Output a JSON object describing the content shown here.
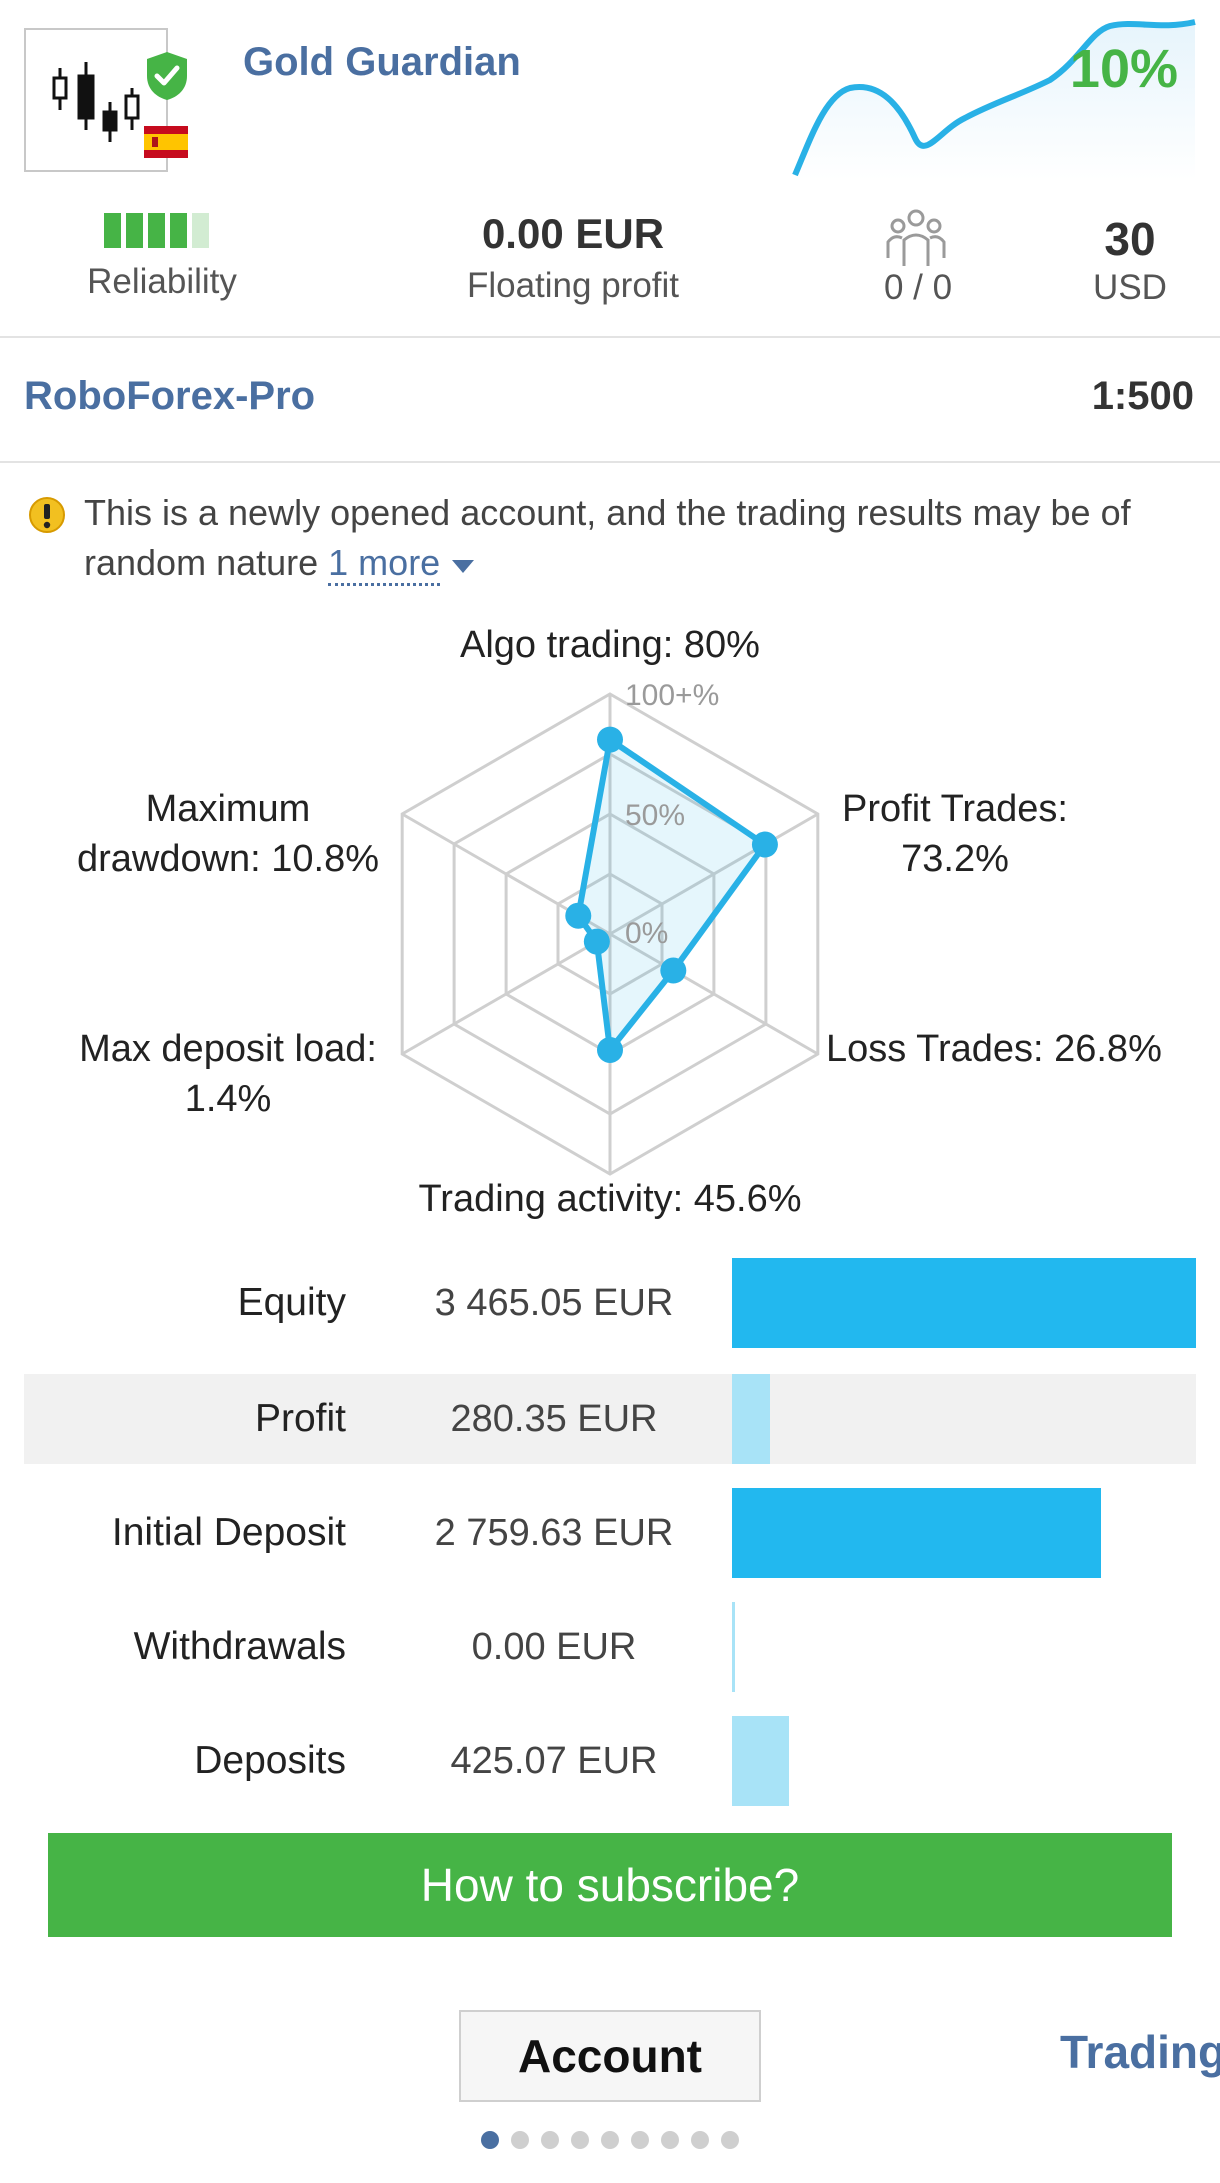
{
  "header": {
    "signal_name": "Gold Guardian",
    "growth": "10%",
    "country_flag": "spain-flag",
    "verified_icon": "verified-shield-icon",
    "colors": {
      "brand_blue": "#4a6fa1",
      "growth_green": "#46b446",
      "chart_blue": "#29b1e6"
    }
  },
  "stats": {
    "reliability_label": "Reliability",
    "reliability_level": 4,
    "reliability_max": 5,
    "floating_profit_value": "0.00 EUR",
    "floating_profit_label": "Floating profit",
    "subscribers_icon": "subscribers-icon",
    "subscribers": "0 / 0",
    "price_value": "30",
    "price_currency": "USD"
  },
  "broker": {
    "name": "RoboForex-Pro",
    "leverage": "1:500"
  },
  "warning": {
    "icon": "warning-icon",
    "text": "This is a newly opened account, and the trading results may be of random nature",
    "more": "1 more"
  },
  "radar": {
    "scale_labels": [
      "100+%",
      "50%",
      "0%"
    ],
    "labels": {
      "algo": "Algo trading: 80%",
      "profit_line1": "Profit Trades:",
      "profit_line2": "73.2%",
      "loss": "Loss Trades: 26.8%",
      "activity": "Trading activity: 45.6%",
      "deposit_line1": "Max deposit load:",
      "deposit_line2": "1.4%",
      "drawdown_line1": "Maximum",
      "drawdown_line2": "drawdown: 10.8%"
    },
    "values": [
      80,
      73.2,
      26.8,
      45.6,
      1.4,
      10.8
    ]
  },
  "table": {
    "rows": [
      {
        "label": "Equity",
        "value": "3 465.05 EUR",
        "fraction": 1.0,
        "style": "strong"
      },
      {
        "label": "Profit",
        "value": "280.35 EUR",
        "fraction": 0.081,
        "style": "light"
      },
      {
        "label": "Initial Deposit",
        "value": "2 759.63 EUR",
        "fraction": 0.796,
        "style": "strong"
      },
      {
        "label": "Withdrawals",
        "value": "0.00 EUR",
        "fraction": 0.0,
        "style": "light"
      },
      {
        "label": "Deposits",
        "value": "425.07 EUR",
        "fraction": 0.123,
        "style": "light"
      }
    ]
  },
  "subscribe_label": "How to subscribe?",
  "tabs": {
    "account": "Account",
    "trading": "Trading"
  },
  "pager": {
    "count": 9,
    "active": 0
  }
}
